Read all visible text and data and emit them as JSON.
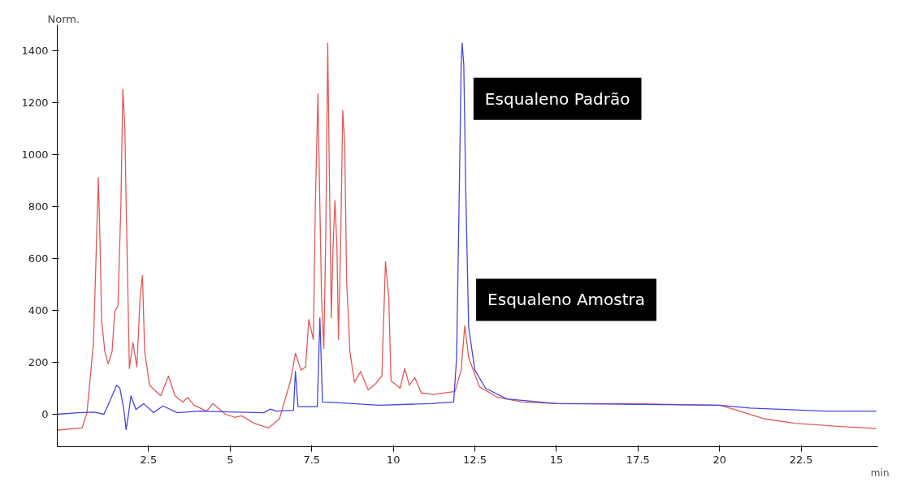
{
  "chart_data": {
    "type": "line",
    "xlabel": "min",
    "ylabel": "Norm.",
    "xlim": [
      -0.3,
      24.85
    ],
    "ylim": [
      -125,
      1500
    ],
    "xticks": [
      2.5,
      5,
      7.5,
      10,
      12.5,
      15,
      17.5,
      20,
      22.5
    ],
    "yticks": [
      0,
      200,
      400,
      600,
      800,
      1000,
      1200,
      1400
    ],
    "grid": false,
    "annotations": [
      {
        "text": "Esqualeno Padrão",
        "x": 12.11,
        "y": 1215
      },
      {
        "text": "Esqualeno Amostra",
        "x": 12.19,
        "y": 441
      }
    ],
    "series": [
      {
        "color": "#e05a5a",
        "x": [
          -0.3,
          0.46,
          0.61,
          0.81,
          0.88,
          0.96,
          1.01,
          1.06,
          1.16,
          1.26,
          1.38,
          1.46,
          1.56,
          1.65,
          1.71,
          1.77,
          1.83,
          1.91,
          2.02,
          2.14,
          2.24,
          2.31,
          2.38,
          2.53,
          2.87,
          3.11,
          3.31,
          3.55,
          3.7,
          3.89,
          4.28,
          4.47,
          4.86,
          5.15,
          5.35,
          5.74,
          6.17,
          6.51,
          6.85,
          7.0,
          7.17,
          7.31,
          7.41,
          7.55,
          7.61,
          7.69,
          7.74,
          7.8,
          7.87,
          7.93,
          7.99,
          8.04,
          8.1,
          8.15,
          8.21,
          8.27,
          8.32,
          8.39,
          8.45,
          8.51,
          8.57,
          8.67,
          8.81,
          9.0,
          9.23,
          9.46,
          9.65,
          9.76,
          9.86,
          9.93,
          10.21,
          10.35,
          10.49,
          10.66,
          10.86,
          11.24,
          11.89,
          12.08,
          12.19,
          12.31,
          12.64,
          13.2,
          13.95,
          15.02,
          17.22,
          20.0,
          20.46,
          21.39,
          22.31,
          23.7,
          24.81
        ],
        "values": [
          -61,
          -53,
          6,
          276,
          570,
          912,
          665,
          359,
          241,
          194,
          241,
          394,
          418,
          806,
          1252,
          1111,
          688,
          176,
          276,
          182,
          453,
          535,
          241,
          112,
          71,
          147,
          71,
          47,
          65,
          35,
          12,
          41,
          0,
          -12,
          -6,
          -35,
          -53,
          -18,
          129,
          235,
          170,
          182,
          365,
          288,
          806,
          1235,
          865,
          453,
          253,
          688,
          1429,
          923,
          371,
          629,
          823,
          653,
          288,
          688,
          1170,
          1041,
          512,
          241,
          123,
          165,
          94,
          118,
          147,
          588,
          453,
          129,
          100,
          176,
          112,
          141,
          82,
          76,
          88,
          170,
          341,
          218,
          106,
          65,
          47,
          41,
          41,
          35,
          18,
          -18,
          -35,
          -47,
          -55
        ]
      },
      {
        "color": "#4646e0",
        "x": [
          -0.3,
          0.34,
          0.83,
          1.13,
          1.32,
          1.52,
          1.62,
          1.74,
          1.81,
          1.89,
          1.96,
          2.11,
          2.35,
          2.65,
          2.94,
          3.38,
          4.07,
          6.03,
          6.23,
          6.42,
          6.94,
          7.0,
          7.08,
          7.67,
          7.75,
          7.83,
          8.34,
          9.56,
          11.14,
          11.85,
          11.94,
          12.03,
          12.08,
          12.11,
          12.16,
          12.22,
          12.31,
          12.5,
          12.83,
          13.48,
          15.02,
          20.0,
          20.93,
          23.24,
          24.81
        ],
        "values": [
          0,
          6,
          8,
          0,
          53,
          112,
          100,
          18,
          -59,
          6,
          71,
          18,
          41,
          6,
          32,
          6,
          12,
          6,
          20,
          12,
          15,
          165,
          29,
          29,
          371,
          47,
          44,
          35,
          41,
          47,
          218,
          923,
          1347,
          1429,
          1347,
          865,
          335,
          170,
          100,
          59,
          41,
          35,
          24,
          12,
          12
        ]
      }
    ]
  }
}
